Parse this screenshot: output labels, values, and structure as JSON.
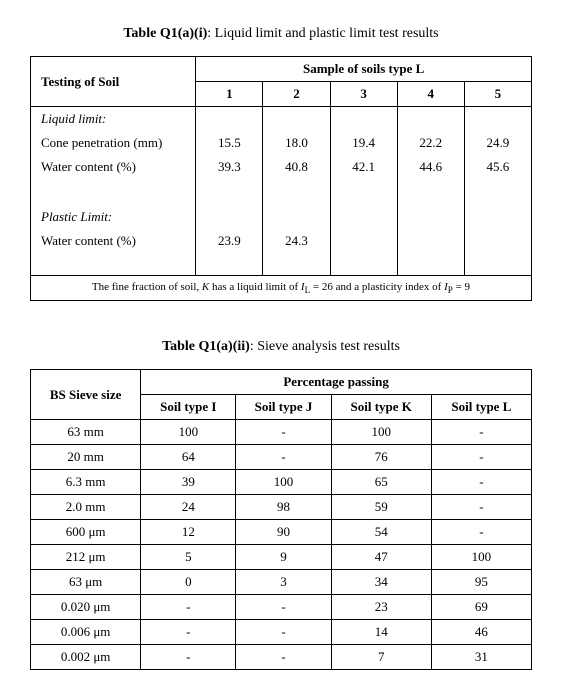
{
  "table1": {
    "title_bold": "Table Q1(a)(i)",
    "title_rest": ": Liquid limit and plastic limit test results",
    "row_header_label": "Testing of Soil",
    "samples_header": "Sample of soils type L",
    "sample_nums": [
      "1",
      "2",
      "3",
      "4",
      "5"
    ],
    "liquid_limit_label": "Liquid limit:",
    "cone_label": "Cone penetration (mm)",
    "cone_values": [
      "15.5",
      "18.0",
      "19.4",
      "22.2",
      "24.9"
    ],
    "water1_label": "Water content (%)",
    "water1_values": [
      "39.3",
      "40.8",
      "42.1",
      "44.6",
      "45.6"
    ],
    "plastic_limit_label": "Plastic Limit:",
    "water2_label": "Water content (%)",
    "water2_values": [
      "23.9",
      "24.3",
      "",
      "",
      ""
    ],
    "footnote_pre": "The fine fraction of soil, ",
    "footnote_K": "K",
    "footnote_mid1": " has a liquid limit of ",
    "footnote_IL": "I",
    "footnote_ILsub": "L",
    "footnote_eq1": " = 26 and a plasticity index of ",
    "footnote_IP": "I",
    "footnote_IPsub": "P",
    "footnote_eq2": " = 9"
  },
  "table2": {
    "title_bold": "Table Q1(a)(ii)",
    "title_rest": ": Sieve analysis test results",
    "row_header_label": "BS Sieve size",
    "passing_header": "Percentage passing",
    "soil_cols": [
      "Soil type I",
      "Soil type J",
      "Soil type K",
      "Soil type L"
    ],
    "rows": [
      {
        "sieve": "63 mm",
        "v": [
          "100",
          "-",
          "100",
          "-"
        ]
      },
      {
        "sieve": "20 mm",
        "v": [
          "64",
          "-",
          "76",
          "-"
        ]
      },
      {
        "sieve": "6.3 mm",
        "v": [
          "39",
          "100",
          "65",
          "-"
        ]
      },
      {
        "sieve": "2.0 mm",
        "v": [
          "24",
          "98",
          "59",
          "-"
        ]
      },
      {
        "sieve": "600 μm",
        "v": [
          "12",
          "90",
          "54",
          "-"
        ]
      },
      {
        "sieve": "212 μm",
        "v": [
          "5",
          "9",
          "47",
          "100"
        ]
      },
      {
        "sieve": "63 μm",
        "v": [
          "0",
          "3",
          "34",
          "95"
        ]
      },
      {
        "sieve": "0.020 μm",
        "v": [
          "-",
          "-",
          "23",
          "69"
        ]
      },
      {
        "sieve": "0.006 μm",
        "v": [
          "-",
          "-",
          "14",
          "46"
        ]
      },
      {
        "sieve": "0.002 μm",
        "v": [
          "-",
          "-",
          "7",
          "31"
        ]
      }
    ]
  },
  "colors": {
    "text": "#000000",
    "bg": "#ffffff",
    "border": "#000000"
  }
}
